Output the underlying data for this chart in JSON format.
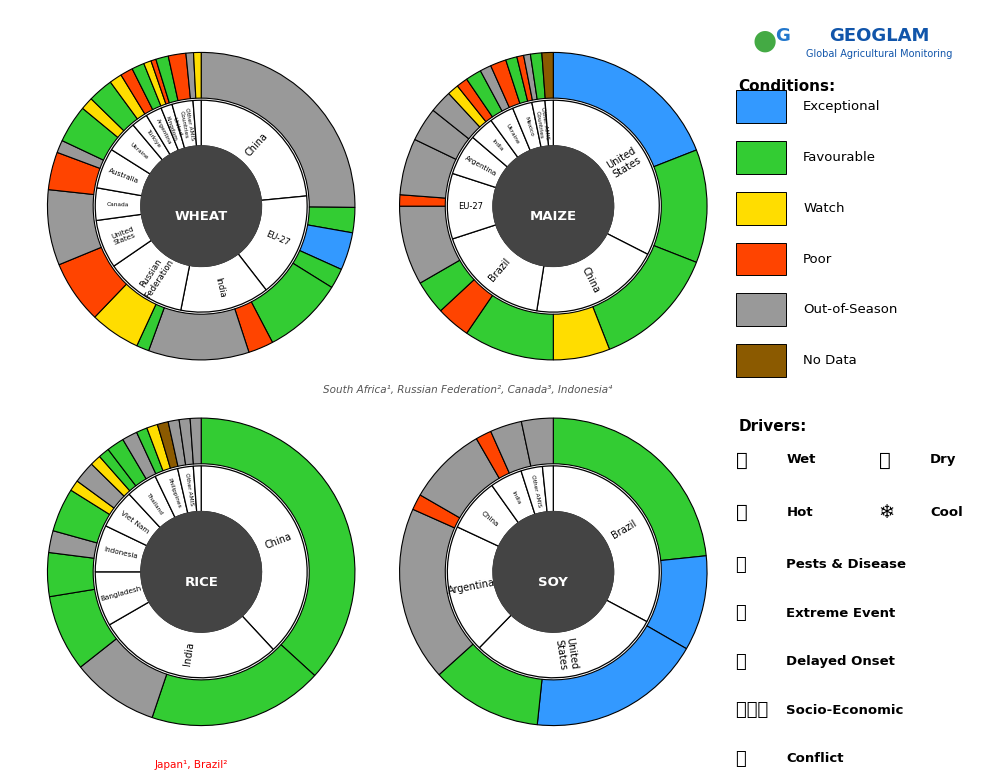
{
  "colors": {
    "exceptional": "#3399FF",
    "favourable": "#33CC33",
    "watch": "#FFDD00",
    "poor": "#FF4400",
    "out_of_season": "#999999",
    "no_data": "#8B5A00",
    "white": "#FFFFFF",
    "center": "#444444"
  },
  "wheat": {
    "title": "WHEAT",
    "inner": [
      [
        95,
        "white",
        "China"
      ],
      [
        65,
        "white",
        "EU-27"
      ],
      [
        55,
        "white",
        "India"
      ],
      [
        50,
        "white",
        "Russian\nFederation"
      ],
      [
        30,
        "white",
        "United\nStates"
      ],
      [
        20,
        "white",
        "Canada"
      ],
      [
        25,
        "white",
        "Australia"
      ],
      [
        20,
        "white",
        "Ukraine"
      ],
      [
        10,
        "white",
        "Türkiye"
      ],
      [
        10,
        "white",
        "Argentina"
      ],
      [
        7,
        "white",
        "United\nKingdom"
      ],
      [
        13,
        "white",
        "Other AMIS\nCountries"
      ],
      [
        5,
        "white",
        ""
      ]
    ],
    "outer": [
      [
        95,
        "out_of_season"
      ],
      [
        10,
        "favourable"
      ],
      [
        15,
        "exceptional"
      ],
      [
        8,
        "favourable"
      ],
      [
        32,
        "favourable"
      ],
      [
        10,
        "poor"
      ],
      [
        40,
        "out_of_season"
      ],
      [
        5,
        "favourable"
      ],
      [
        20,
        "watch"
      ],
      [
        25,
        "poor"
      ],
      [
        30,
        "out_of_season"
      ],
      [
        15,
        "poor"
      ],
      [
        5,
        "out_of_season"
      ],
      [
        15,
        "favourable"
      ],
      [
        5,
        "watch"
      ],
      [
        10,
        "favourable"
      ],
      [
        5,
        "watch"
      ],
      [
        5,
        "poor"
      ],
      [
        5,
        "favourable"
      ],
      [
        3,
        "watch"
      ],
      [
        2,
        "poor"
      ],
      [
        5,
        "favourable"
      ],
      [
        7,
        "poor"
      ],
      [
        3,
        "out_of_season"
      ],
      [
        3,
        "watch"
      ]
    ]
  },
  "maize": {
    "title": "MAIZE",
    "inner": [
      [
        130,
        "white",
        "United\nStates"
      ],
      [
        80,
        "white",
        "China"
      ],
      [
        70,
        "white",
        "Brazil"
      ],
      [
        40,
        "white",
        "EU-27"
      ],
      [
        25,
        "white",
        "Argentina"
      ],
      [
        15,
        "white",
        "India"
      ],
      [
        15,
        "white",
        "Ukraine"
      ],
      [
        12,
        "white",
        "Mexico"
      ],
      [
        8,
        "white",
        "Other AMIS\nCountries"
      ],
      [
        5,
        "white",
        ""
      ]
    ],
    "outer": [
      [
        80,
        "exceptional"
      ],
      [
        50,
        "favourable"
      ],
      [
        55,
        "favourable"
      ],
      [
        25,
        "watch"
      ],
      [
        40,
        "favourable"
      ],
      [
        15,
        "poor"
      ],
      [
        15,
        "favourable"
      ],
      [
        35,
        "out_of_season"
      ],
      [
        5,
        "poor"
      ],
      [
        25,
        "out_of_season"
      ],
      [
        15,
        "out_of_season"
      ],
      [
        10,
        "out_of_season"
      ],
      [
        5,
        "watch"
      ],
      [
        5,
        "poor"
      ],
      [
        7,
        "favourable"
      ],
      [
        5,
        "out_of_season"
      ],
      [
        7,
        "poor"
      ],
      [
        5,
        "favourable"
      ],
      [
        3,
        "poor"
      ],
      [
        3,
        "out_of_season"
      ],
      [
        5,
        "favourable"
      ],
      [
        5,
        "no_data"
      ]
    ]
  },
  "rice": {
    "title": "RICE",
    "inner": [
      [
        160,
        "white",
        "China"
      ],
      [
        120,
        "white",
        "India"
      ],
      [
        35,
        "white",
        "Bangladesh"
      ],
      [
        30,
        "white",
        "Indonesia"
      ],
      [
        25,
        "white",
        "Viet Nam"
      ],
      [
        20,
        "white",
        "Thailand"
      ],
      [
        15,
        "white",
        "Philippines"
      ],
      [
        10,
        "white",
        "Other AMIS"
      ],
      [
        5,
        "white",
        ""
      ]
    ],
    "outer": [
      [
        160,
        "favourable"
      ],
      [
        80,
        "favourable"
      ],
      [
        40,
        "out_of_season"
      ],
      [
        35,
        "favourable"
      ],
      [
        20,
        "favourable"
      ],
      [
        10,
        "out_of_season"
      ],
      [
        20,
        "favourable"
      ],
      [
        5,
        "watch"
      ],
      [
        10,
        "out_of_season"
      ],
      [
        5,
        "watch"
      ],
      [
        5,
        "favourable"
      ],
      [
        8,
        "favourable"
      ],
      [
        7,
        "out_of_season"
      ],
      [
        5,
        "favourable"
      ],
      [
        5,
        "watch"
      ],
      [
        5,
        "no_data"
      ],
      [
        5,
        "out_of_season"
      ],
      [
        5,
        "out_of_season"
      ],
      [
        5,
        "out_of_season"
      ]
    ]
  },
  "soy": {
    "title": "SOY",
    "inner": [
      [
        100,
        "white",
        "Brazil"
      ],
      [
        90,
        "white",
        "United\nStates"
      ],
      [
        60,
        "white",
        "Argentina"
      ],
      [
        25,
        "white",
        "China"
      ],
      [
        15,
        "white",
        "India"
      ],
      [
        10,
        "white",
        "Other AMIS"
      ],
      [
        5,
        "white",
        ""
      ]
    ],
    "outer": [
      [
        70,
        "favourable"
      ],
      [
        30,
        "exceptional"
      ],
      [
        55,
        "exceptional"
      ],
      [
        35,
        "favourable"
      ],
      [
        55,
        "out_of_season"
      ],
      [
        5,
        "poor"
      ],
      [
        25,
        "out_of_season"
      ],
      [
        5,
        "poor"
      ],
      [
        10,
        "out_of_season"
      ],
      [
        10,
        "out_of_season"
      ]
    ]
  },
  "footnote_center": "South Africa¹, Russian Federation², Canada³, Indonesia⁴",
  "footnote_left": "Japan¹, Brazil²"
}
